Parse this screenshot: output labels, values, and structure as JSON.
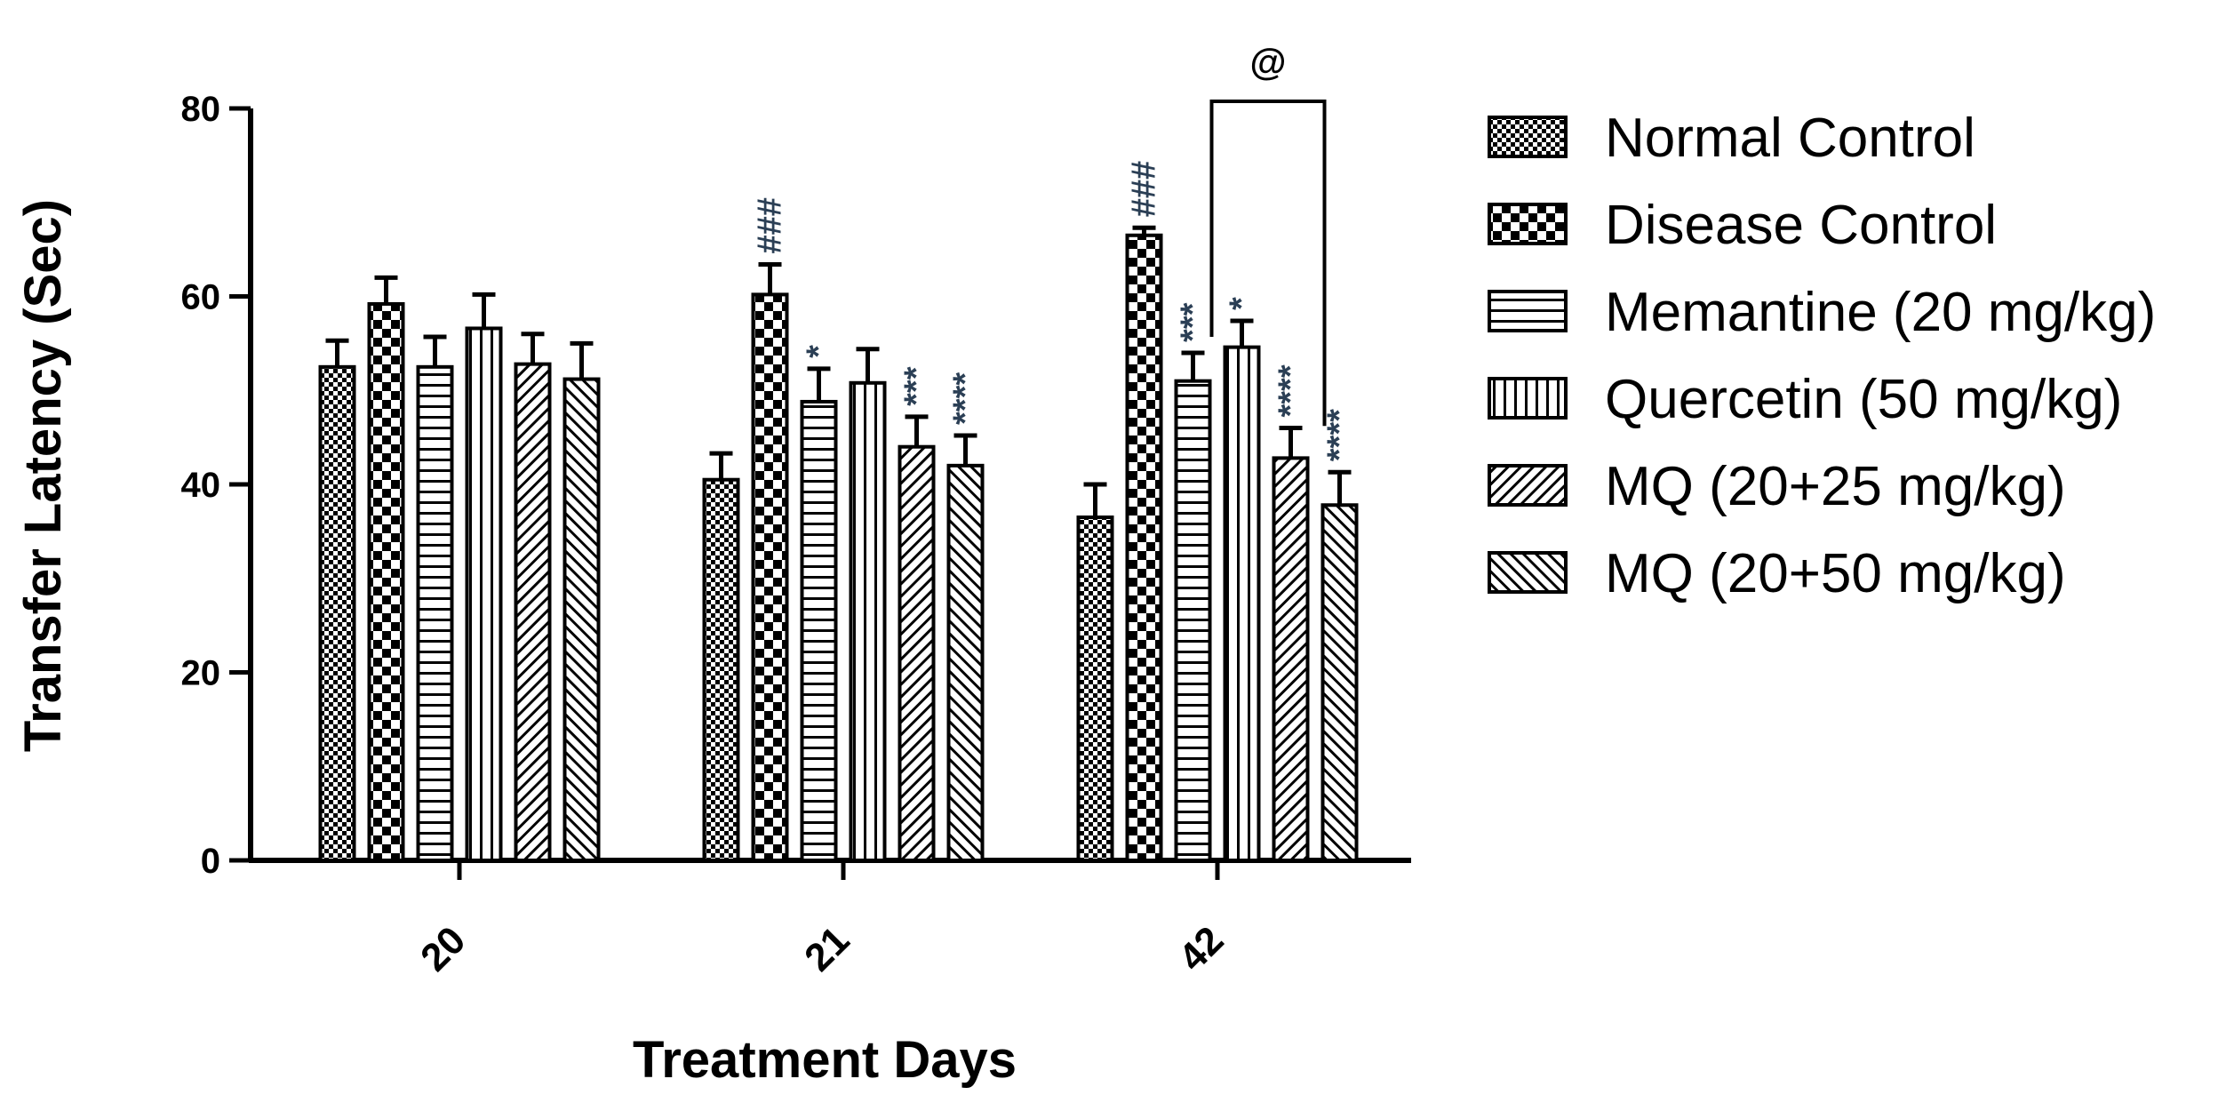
{
  "chart_data": {
    "type": "bar",
    "title": "",
    "xlabel": "Treatment Days",
    "ylabel": "Transfer Latency (Sec)",
    "ylim": [
      0,
      80
    ],
    "yticks": [
      "0",
      "20",
      "40",
      "60",
      "80"
    ],
    "categories": [
      "20",
      "21",
      "42"
    ],
    "series": [
      {
        "name": "Normal Control",
        "pattern": "checker-fine",
        "values": [
          52.5,
          40.5,
          36.5
        ],
        "errors": [
          2.8,
          2.8,
          3.5
        ],
        "annotations": [
          "",
          "",
          ""
        ]
      },
      {
        "name": "Disease Control",
        "pattern": "checker-large",
        "values": [
          59.2,
          60.2,
          66.5
        ],
        "errors": [
          2.8,
          3.2,
          0.8
        ],
        "annotations": [
          "",
          "###",
          "###"
        ]
      },
      {
        "name": "Memantine (20 mg/kg)",
        "pattern": "horizontal",
        "values": [
          52.5,
          48.8,
          51.0
        ],
        "errors": [
          3.2,
          3.5,
          3.0
        ],
        "annotations": [
          "",
          "*",
          "***"
        ]
      },
      {
        "name": "Quercetin (50 mg/kg)",
        "pattern": "vertical",
        "values": [
          56.6,
          50.8,
          54.6
        ],
        "errors": [
          3.6,
          3.6,
          2.8
        ],
        "annotations": [
          "",
          "",
          "*"
        ]
      },
      {
        "name": "MQ (20+25 mg/kg)",
        "pattern": "diag-right",
        "values": [
          52.8,
          44.0,
          42.8
        ],
        "errors": [
          3.2,
          3.2,
          3.2
        ],
        "annotations": [
          "",
          "***",
          "****"
        ]
      },
      {
        "name": "MQ (20+50 mg/kg)",
        "pattern": "diag-left",
        "values": [
          51.2,
          42.0,
          37.8
        ],
        "errors": [
          3.8,
          3.2,
          3.5
        ],
        "annotations": [
          "",
          "****",
          "****"
        ]
      }
    ],
    "bracket": {
      "category": "42",
      "from_series": 2,
      "to_series": 5,
      "label": "@"
    },
    "legend_position": "right",
    "colors": {
      "bar_edge": "#000000",
      "annotation": "#2b3f55",
      "background": "#ffffff"
    }
  }
}
